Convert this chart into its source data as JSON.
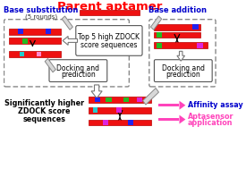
{
  "title": "Parent aptamer",
  "title_color": "#FF0000",
  "bg_color": "#FFFFFF",
  "base_sub_label": "Base substitution",
  "base_sub_sub": "(5 rounds)",
  "base_add_label": "Base addition",
  "left_box_label1": "Docking and",
  "left_box_label2": "prediction",
  "right_box_label1": "Docking and",
  "right_box_label2": "prediction",
  "center_box_label1": "Top 5 high ZDOCK",
  "center_box_label2": "score sequences",
  "bottom_left1": "Significantly higher",
  "bottom_left2": "ZDOCK score",
  "bottom_left3": "sequences",
  "bottom_right1": "Affinity assay",
  "bottom_right2": "Aptasensor",
  "bottom_right2b": "application",
  "label_color_blue": "#0000CC",
  "label_color_pink": "#FF44BB",
  "dna_red": "#EE1111",
  "dna_blue": "#2222EE",
  "dna_green": "#22BB22",
  "dna_cyan": "#22CCCC",
  "dna_magenta": "#DD22DD",
  "dna_lpink": "#FF88CC"
}
